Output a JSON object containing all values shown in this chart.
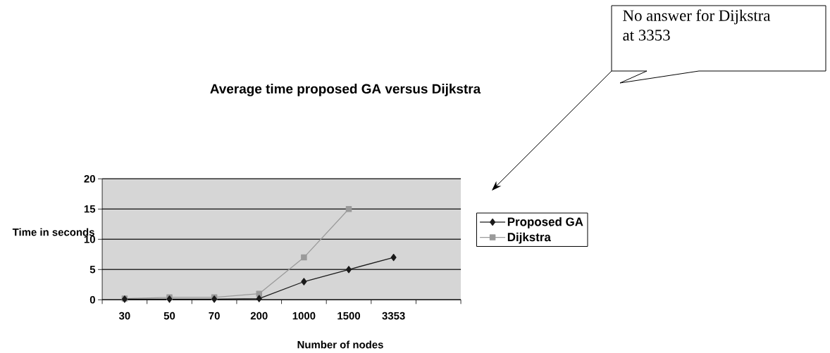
{
  "chart_data": {
    "type": "line",
    "title": "Average time proposed GA versus Dijkstra",
    "xlabel": "Number of nodes",
    "ylabel": "Time in seconds",
    "categories": [
      "30",
      "50",
      "70",
      "200",
      "1000",
      "1500",
      "3353",
      null
    ],
    "series": [
      {
        "name": "Proposed GA",
        "color": "#1a1a1a",
        "marker": "diamond",
        "values": [
          0.1,
          0.1,
          0.1,
          0.2,
          3,
          5,
          7,
          null
        ]
      },
      {
        "name": "Dijkstra",
        "color": "#9a9a9a",
        "marker": "square",
        "values": [
          0.2,
          0.4,
          0.4,
          1,
          7,
          15,
          null,
          null
        ]
      }
    ],
    "ylim": [
      0,
      20
    ],
    "yticks": [
      0,
      5,
      10,
      15,
      20
    ],
    "grid": "y",
    "legend": "right",
    "annotations": [
      "No answer for Dijkstra at 3353"
    ]
  }
}
